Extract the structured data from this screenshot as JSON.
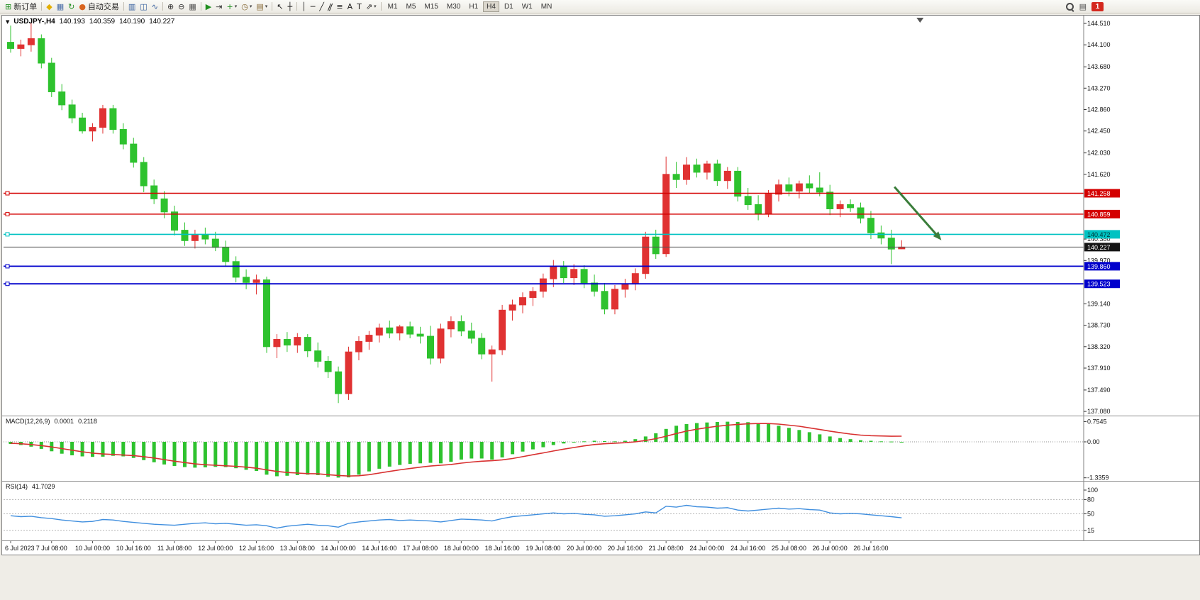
{
  "icons": {
    "one_click_glyph": "▼"
  },
  "toolbar": {
    "groups": [
      {
        "items": [
          {
            "name": "new-order-button",
            "glyph": "⊞",
            "color": "#1f8f1f",
            "label": "新订单"
          }
        ]
      },
      {
        "items": [
          {
            "name": "quick-trade-icon",
            "glyph": "◆",
            "color": "#e3ae00"
          },
          {
            "name": "chart-window-icon",
            "glyph": "▦",
            "color": "#4a6ea8"
          },
          {
            "name": "refresh-icon",
            "glyph": "↻",
            "color": "#1f8f1f"
          },
          {
            "name": "autotrading-button",
            "glyph": "●",
            "color": "#d8641e",
            "label": "自动交易"
          }
        ]
      },
      {
        "items": [
          {
            "name": "bar-chart-button",
            "glyph": "▥",
            "color": "#355f9e"
          },
          {
            "name": "candlestick-chart-button",
            "glyph": "◫",
            "color": "#355f9e"
          },
          {
            "name": "line-chart-button",
            "glyph": "∿",
            "color": "#355f9e"
          }
        ]
      },
      {
        "items": [
          {
            "name": "zoom-in-button",
            "glyph": "⊕",
            "color": "#333333"
          },
          {
            "name": "zoom-out-button",
            "glyph": "⊖",
            "color": "#333333"
          },
          {
            "name": "tile-windows-button",
            "glyph": "▦",
            "color": "#555555"
          }
        ]
      },
      {
        "items": [
          {
            "name": "auto-scroll-button",
            "glyph": "▶",
            "color": "#1f8f1f"
          },
          {
            "name": "chart-shift-button",
            "glyph": "⇥",
            "color": "#333333"
          },
          {
            "name": "indicators-button",
            "glyph": "+",
            "color": "#1f8f1f",
            "caret": true
          },
          {
            "name": "periods-button",
            "glyph": "◷",
            "color": "#8a6d3b",
            "caret": true
          },
          {
            "name": "templates-button",
            "glyph": "▤",
            "color": "#8a6d3b",
            "caret": true
          }
        ]
      },
      {
        "items": [
          {
            "name": "cursor-button",
            "glyph": "↖",
            "color": "#222222"
          },
          {
            "name": "crosshair-button",
            "glyph": "┼",
            "color": "#222222"
          }
        ]
      },
      {
        "items": [
          {
            "name": "vertical-line-button",
            "glyph": "│",
            "color": "#222222"
          },
          {
            "name": "horizontal-line-button",
            "glyph": "─",
            "color": "#222222"
          },
          {
            "name": "trendline-button",
            "glyph": "╱",
            "color": "#222222"
          },
          {
            "name": "channel-button",
            "glyph": "ǁ",
            "color": "#222222",
            "slant": true
          },
          {
            "name": "fibonacci-button",
            "glyph": "≡",
            "color": "#222222"
          },
          {
            "name": "text-button",
            "glyph": "A",
            "color": "#222222"
          },
          {
            "name": "label-button",
            "glyph": "T",
            "color": "#222222"
          },
          {
            "name": "arrows-button",
            "glyph": "⇗",
            "color": "#222222",
            "caret": true
          }
        ]
      }
    ],
    "timeframes": {
      "options": [
        "M1",
        "M5",
        "M15",
        "M30",
        "H1",
        "H4",
        "D1",
        "W1",
        "MN"
      ],
      "active": "H4"
    },
    "right_items": {
      "badge": "1"
    }
  },
  "chart_data": [
    {
      "type": "candlestick",
      "symbol": "USDJPY-",
      "timeframe": "H4",
      "title_parts": {
        "symbol_period": "USDJPY-,H4",
        "open": "140.193",
        "high": "140.359",
        "low": "140.190",
        "close": "140.227"
      },
      "ylim": [
        137.0,
        144.66
      ],
      "bull_color": "#e03232",
      "bear_color": "#2ec22e",
      "color_note": "red = up candle, green = down candle",
      "y_ticks": [
        144.51,
        144.1,
        143.68,
        143.27,
        142.86,
        142.45,
        142.03,
        141.62,
        140.38,
        139.97,
        139.14,
        138.73,
        138.32,
        137.91,
        137.49,
        137.08
      ],
      "hlines": [
        {
          "price": 141.258,
          "color": "#d40000",
          "width": 1.4,
          "label": "141.258",
          "label_bg": "#d40000",
          "label_fg": "#ffffff",
          "handle": true
        },
        {
          "price": 140.859,
          "color": "#d40000",
          "width": 1.4,
          "label": "140.859",
          "label_bg": "#d40000",
          "label_fg": "#ffffff",
          "handle": true
        },
        {
          "price": 140.472,
          "color": "#00c2c2",
          "width": 1.6,
          "label": "140.472",
          "label_bg": "#00c2c2",
          "label_fg": "#003333",
          "handle": true
        },
        {
          "price": 140.227,
          "color": "#555555",
          "width": 1.0,
          "label": "140.227",
          "label_bg": "#151515",
          "label_fg": "#ffffff",
          "handle": false
        },
        {
          "price": 139.86,
          "color": "#0000cc",
          "width": 1.8,
          "label": "139.860",
          "label_bg": "#0000cc",
          "label_fg": "#ffffff",
          "handle": true
        },
        {
          "price": 139.523,
          "color": "#0000cc",
          "width": 1.8,
          "label": "139.523",
          "label_bg": "#0000cc",
          "label_fg": "#ffffff",
          "handle": true
        }
      ],
      "arrow": {
        "from_index": 86.3,
        "from_price": 141.38,
        "to_index": 90.7,
        "to_price": 140.4,
        "color": "#3a7d3a",
        "width": 3
      },
      "shift_marker_index": 88.8,
      "time_labels": [
        "6 Jul 2023",
        "7 Jul 08:00",
        "10 Jul 00:00",
        "10 Jul 16:00",
        "11 Jul 08:00",
        "12 Jul 00:00",
        "12 Jul 16:00",
        "13 Jul 08:00",
        "14 Jul 00:00",
        "14 Jul 16:00",
        "17 Jul 08:00",
        "18 Jul 00:00",
        "18 Jul 16:00",
        "19 Jul 08:00",
        "20 Jul 00:00",
        "20 Jul 16:00",
        "21 Jul 08:00",
        "24 Jul 00:00",
        "24 Jul 16:00",
        "25 Jul 08:00",
        "26 Jul 00:00",
        "26 Jul 16:00"
      ],
      "label_step": 4,
      "candles": [
        [
          144.15,
          144.47,
          143.95,
          144.03
        ],
        [
          144.03,
          144.2,
          143.88,
          144.1
        ],
        [
          144.1,
          144.53,
          143.97,
          144.22
        ],
        [
          144.22,
          144.3,
          143.65,
          143.75
        ],
        [
          143.75,
          143.85,
          143.1,
          143.2
        ],
        [
          143.2,
          143.35,
          142.85,
          142.95
        ],
        [
          142.95,
          143.05,
          142.6,
          142.7
        ],
        [
          142.7,
          142.8,
          142.4,
          142.45
        ],
        [
          142.45,
          142.6,
          142.25,
          142.52
        ],
        [
          142.52,
          142.95,
          142.4,
          142.88
        ],
        [
          142.88,
          142.95,
          142.4,
          142.48
        ],
        [
          142.48,
          142.6,
          142.1,
          142.2
        ],
        [
          142.2,
          142.32,
          141.75,
          141.85
        ],
        [
          141.85,
          141.95,
          141.28,
          141.4
        ],
        [
          141.4,
          141.52,
          141.05,
          141.15
        ],
        [
          141.15,
          141.3,
          140.78,
          140.9
        ],
        [
          140.9,
          141.02,
          140.45,
          140.55
        ],
        [
          140.55,
          140.7,
          140.25,
          140.35
        ],
        [
          140.35,
          140.56,
          140.2,
          140.46
        ],
        [
          140.46,
          140.6,
          140.28,
          140.38
        ],
        [
          140.38,
          140.52,
          140.15,
          140.22
        ],
        [
          140.22,
          140.35,
          139.85,
          139.95
        ],
        [
          139.95,
          140.05,
          139.55,
          139.65
        ],
        [
          139.65,
          139.8,
          139.42,
          139.55
        ],
        [
          139.55,
          139.7,
          139.32,
          139.6
        ],
        [
          139.6,
          139.66,
          138.2,
          138.32
        ],
        [
          138.32,
          138.56,
          138.1,
          138.46
        ],
        [
          138.46,
          138.6,
          138.22,
          138.35
        ],
        [
          138.35,
          138.58,
          138.2,
          138.5
        ],
        [
          138.5,
          138.56,
          138.12,
          138.24
        ],
        [
          138.24,
          138.4,
          137.92,
          138.04
        ],
        [
          138.04,
          138.14,
          137.72,
          137.84
        ],
        [
          137.84,
          137.94,
          137.24,
          137.42
        ],
        [
          137.42,
          138.32,
          137.3,
          138.22
        ],
        [
          138.22,
          138.52,
          138.06,
          138.42
        ],
        [
          138.42,
          138.62,
          138.26,
          138.54
        ],
        [
          138.54,
          138.76,
          138.4,
          138.68
        ],
        [
          138.68,
          138.82,
          138.48,
          138.58
        ],
        [
          138.58,
          138.74,
          138.44,
          138.7
        ],
        [
          138.7,
          138.8,
          138.48,
          138.56
        ],
        [
          138.56,
          138.7,
          138.38,
          138.52
        ],
        [
          138.52,
          138.72,
          137.98,
          138.1
        ],
        [
          138.1,
          138.76,
          138.0,
          138.66
        ],
        [
          138.66,
          138.9,
          138.5,
          138.8
        ],
        [
          138.8,
          138.92,
          138.52,
          138.62
        ],
        [
          138.62,
          138.78,
          138.38,
          138.48
        ],
        [
          138.48,
          138.58,
          138.08,
          138.18
        ],
        [
          138.18,
          138.34,
          137.65,
          138.26
        ],
        [
          138.26,
          139.12,
          138.16,
          139.02
        ],
        [
          139.02,
          139.22,
          138.82,
          139.12
        ],
        [
          139.12,
          139.36,
          138.96,
          139.26
        ],
        [
          139.26,
          139.46,
          139.1,
          139.38
        ],
        [
          139.38,
          139.72,
          139.26,
          139.62
        ],
        [
          139.62,
          139.98,
          139.46,
          139.86
        ],
        [
          139.86,
          139.96,
          139.54,
          139.64
        ],
        [
          139.64,
          139.9,
          139.5,
          139.8
        ],
        [
          139.8,
          139.88,
          139.44,
          139.54
        ],
        [
          139.54,
          139.7,
          139.28,
          139.38
        ],
        [
          139.38,
          139.54,
          138.94,
          139.04
        ],
        [
          139.04,
          139.5,
          138.94,
          139.42
        ],
        [
          139.42,
          139.62,
          139.26,
          139.52
        ],
        [
          139.52,
          139.82,
          139.4,
          139.72
        ],
        [
          139.72,
          140.52,
          139.62,
          140.42
        ],
        [
          140.42,
          140.56,
          140.0,
          140.1
        ],
        [
          140.1,
          141.96,
          140.04,
          141.62
        ],
        [
          141.62,
          141.86,
          141.36,
          141.52
        ],
        [
          141.52,
          141.95,
          141.42,
          141.8
        ],
        [
          141.8,
          141.92,
          141.56,
          141.66
        ],
        [
          141.66,
          141.88,
          141.52,
          141.82
        ],
        [
          141.82,
          141.9,
          141.4,
          141.5
        ],
        [
          141.5,
          141.76,
          141.34,
          141.68
        ],
        [
          141.68,
          141.76,
          141.1,
          141.2
        ],
        [
          141.2,
          141.36,
          140.94,
          141.04
        ],
        [
          141.04,
          141.22,
          140.74,
          140.86
        ],
        [
          140.86,
          141.32,
          140.8,
          141.24
        ],
        [
          141.24,
          141.52,
          141.1,
          141.42
        ],
        [
          141.42,
          141.56,
          141.2,
          141.3
        ],
        [
          141.3,
          141.5,
          141.16,
          141.44
        ],
        [
          141.44,
          141.6,
          141.26,
          141.36
        ],
        [
          141.36,
          141.66,
          141.2,
          141.28
        ],
        [
          141.28,
          141.42,
          140.84,
          140.96
        ],
        [
          140.96,
          141.12,
          140.8,
          141.04
        ],
        [
          141.04,
          141.14,
          140.9,
          140.98
        ],
        [
          140.98,
          141.08,
          140.68,
          140.78
        ],
        [
          140.78,
          140.92,
          140.38,
          140.5
        ],
        [
          140.5,
          140.64,
          140.28,
          140.4
        ],
        [
          140.4,
          140.56,
          139.9,
          140.19
        ],
        [
          140.193,
          140.359,
          140.19,
          140.227
        ]
      ]
    },
    {
      "type": "bar",
      "label": {
        "name": "MACD(12,26,9)",
        "main": "0.0001",
        "signal": "0.2118"
      },
      "ylim": [
        -1.45,
        0.95
      ],
      "bar_color": "#2ec22e",
      "signal_color": "#d83030",
      "y_ticks": [
        {
          "v": 0.7545,
          "label": "0.7545"
        },
        {
          "v": 0,
          "label": "0.00"
        },
        {
          "v": -1.3359,
          "label": "-1.3359"
        }
      ],
      "values": [
        -0.08,
        -0.12,
        -0.18,
        -0.26,
        -0.35,
        -0.44,
        -0.5,
        -0.54,
        -0.56,
        -0.55,
        -0.52,
        -0.54,
        -0.6,
        -0.68,
        -0.76,
        -0.84,
        -0.9,
        -0.94,
        -0.96,
        -0.95,
        -0.93,
        -0.94,
        -0.98,
        -1.04,
        -1.08,
        -1.22,
        -1.28,
        -1.26,
        -1.24,
        -1.22,
        -1.24,
        -1.3,
        -1.33,
        -1.32,
        -1.22,
        -1.1,
        -1.0,
        -0.92,
        -0.86,
        -0.82,
        -0.8,
        -0.78,
        -0.8,
        -0.74,
        -0.66,
        -0.62,
        -0.62,
        -0.66,
        -0.58,
        -0.46,
        -0.36,
        -0.28,
        -0.2,
        -0.12,
        -0.06,
        -0.02,
        0.02,
        0.04,
        0.03,
        0.02,
        0.04,
        0.1,
        0.2,
        0.32,
        0.48,
        0.6,
        0.66,
        0.7,
        0.72,
        0.74,
        0.75,
        0.74,
        0.73,
        0.7,
        0.66,
        0.6,
        0.52,
        0.44,
        0.36,
        0.28,
        0.2,
        0.14,
        0.1,
        0.06,
        0.04,
        0.02,
        0.01,
        0.0001
      ],
      "signal": [
        -0.05,
        -0.07,
        -0.1,
        -0.14,
        -0.19,
        -0.25,
        -0.31,
        -0.37,
        -0.42,
        -0.45,
        -0.47,
        -0.49,
        -0.51,
        -0.55,
        -0.6,
        -0.66,
        -0.72,
        -0.77,
        -0.82,
        -0.85,
        -0.87,
        -0.89,
        -0.91,
        -0.94,
        -0.98,
        -1.04,
        -1.1,
        -1.14,
        -1.16,
        -1.18,
        -1.19,
        -1.22,
        -1.25,
        -1.27,
        -1.26,
        -1.22,
        -1.16,
        -1.1,
        -1.04,
        -0.99,
        -0.94,
        -0.9,
        -0.87,
        -0.84,
        -0.79,
        -0.75,
        -0.72,
        -0.7,
        -0.67,
        -0.62,
        -0.55,
        -0.48,
        -0.41,
        -0.34,
        -0.27,
        -0.21,
        -0.15,
        -0.1,
        -0.07,
        -0.05,
        -0.03,
        0.0,
        0.05,
        0.12,
        0.21,
        0.31,
        0.4,
        0.47,
        0.53,
        0.58,
        0.62,
        0.65,
        0.67,
        0.68,
        0.68,
        0.66,
        0.62,
        0.58,
        0.52,
        0.46,
        0.4,
        0.34,
        0.29,
        0.25,
        0.23,
        0.22,
        0.21,
        0.2118
      ]
    },
    {
      "type": "line",
      "label": {
        "name": "RSI(14)",
        "value": "41.7029"
      },
      "ylim": [
        -6,
        118
      ],
      "line_color": "#3f8ede",
      "levels": [
        80,
        50,
        15
      ],
      "y_ticks": [
        {
          "v": 100,
          "label": "100"
        },
        {
          "v": 80,
          "label": "80"
        },
        {
          "v": 50,
          "label": "50"
        },
        {
          "v": 15,
          "label": "15"
        }
      ],
      "values": [
        46,
        44,
        45,
        42,
        40,
        37,
        35,
        33,
        34,
        38,
        37,
        34,
        32,
        30,
        28,
        27,
        26,
        28,
        30,
        31,
        29,
        30,
        28,
        26,
        27,
        25,
        20,
        24,
        26,
        28,
        26,
        25,
        22,
        30,
        33,
        35,
        37,
        38,
        36,
        37,
        36,
        35,
        33,
        36,
        39,
        38,
        37,
        35,
        40,
        44,
        46,
        48,
        50,
        52,
        50,
        51,
        49,
        48,
        45,
        46,
        48,
        50,
        54,
        52,
        66,
        64,
        68,
        65,
        64,
        62,
        63,
        58,
        56,
        58,
        60,
        62,
        60,
        61,
        59,
        58,
        52,
        50,
        51,
        50,
        48,
        46,
        44,
        41.7
      ]
    }
  ]
}
